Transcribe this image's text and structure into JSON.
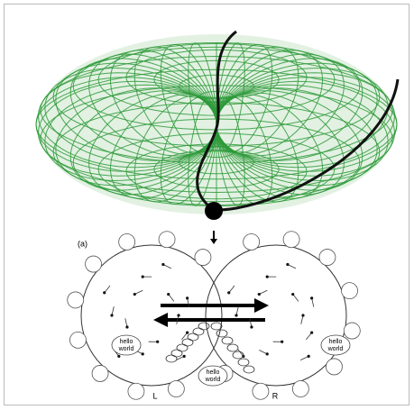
{
  "panel_label": "(a)",
  "notes": [
    {
      "lines": [
        "hello",
        "world"
      ]
    },
    {
      "lines": [
        "hello",
        "world"
      ]
    },
    {
      "lines": [
        "hello",
        "world"
      ]
    }
  ],
  "left_label": "L",
  "right_label": "R"
}
